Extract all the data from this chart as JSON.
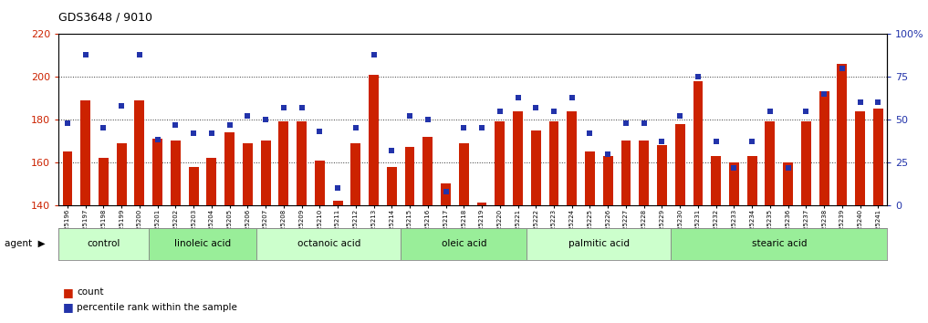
{
  "title": "GDS3648 / 9010",
  "bar_color": "#cc2200",
  "dot_color": "#2233aa",
  "bg_color": "#ffffff",
  "ylim_left": [
    140,
    220
  ],
  "ylim_right": [
    0,
    100
  ],
  "yticks_left": [
    140,
    160,
    180,
    200,
    220
  ],
  "yticks_right": [
    0,
    25,
    50,
    75,
    100
  ],
  "yticklabels_right": [
    "0",
    "25",
    "50",
    "75",
    "100%"
  ],
  "samples": [
    "GSM525196",
    "GSM525197",
    "GSM525198",
    "GSM525199",
    "GSM525200",
    "GSM525201",
    "GSM525202",
    "GSM525203",
    "GSM525204",
    "GSM525205",
    "GSM525206",
    "GSM525207",
    "GSM525208",
    "GSM525209",
    "GSM525210",
    "GSM525211",
    "GSM525212",
    "GSM525213",
    "GSM525214",
    "GSM525215",
    "GSM525216",
    "GSM525217",
    "GSM525218",
    "GSM525219",
    "GSM525220",
    "GSM525221",
    "GSM525222",
    "GSM525223",
    "GSM525224",
    "GSM525225",
    "GSM525226",
    "GSM525227",
    "GSM525228",
    "GSM525229",
    "GSM525230",
    "GSM525231",
    "GSM525232",
    "GSM525233",
    "GSM525234",
    "GSM525235",
    "GSM525236",
    "GSM525237",
    "GSM525238",
    "GSM525239",
    "GSM525240",
    "GSM525241"
  ],
  "bar_heights": [
    165,
    189,
    162,
    169,
    189,
    171,
    170,
    158,
    162,
    174,
    169,
    170,
    179,
    179,
    161,
    142,
    169,
    201,
    158,
    167,
    172,
    150,
    169,
    141,
    179,
    184,
    175,
    179,
    184,
    165,
    163,
    170,
    170,
    168,
    178,
    198,
    163,
    160,
    163,
    179,
    160,
    179,
    193,
    206,
    184,
    185
  ],
  "dot_values_pct": [
    48,
    88,
    45,
    58,
    88,
    38,
    47,
    42,
    42,
    47,
    52,
    50,
    57,
    57,
    43,
    10,
    45,
    88,
    32,
    52,
    50,
    8,
    45,
    45,
    55,
    63,
    57,
    55,
    63,
    42,
    30,
    48,
    48,
    37,
    52,
    75,
    37,
    22,
    37,
    55,
    22,
    55,
    65,
    80,
    60,
    60
  ],
  "groups": [
    {
      "label": "control",
      "start": 0,
      "end": 4,
      "color": "#ccffcc"
    },
    {
      "label": "linoleic acid",
      "start": 5,
      "end": 10,
      "color": "#99ee99"
    },
    {
      "label": "octanoic acid",
      "start": 11,
      "end": 18,
      "color": "#ccffcc"
    },
    {
      "label": "oleic acid",
      "start": 19,
      "end": 25,
      "color": "#99ee99"
    },
    {
      "label": "palmitic acid",
      "start": 26,
      "end": 33,
      "color": "#ccffcc"
    },
    {
      "label": "stearic acid",
      "start": 34,
      "end": 45,
      "color": "#99ee99"
    }
  ],
  "bar_width": 0.55
}
